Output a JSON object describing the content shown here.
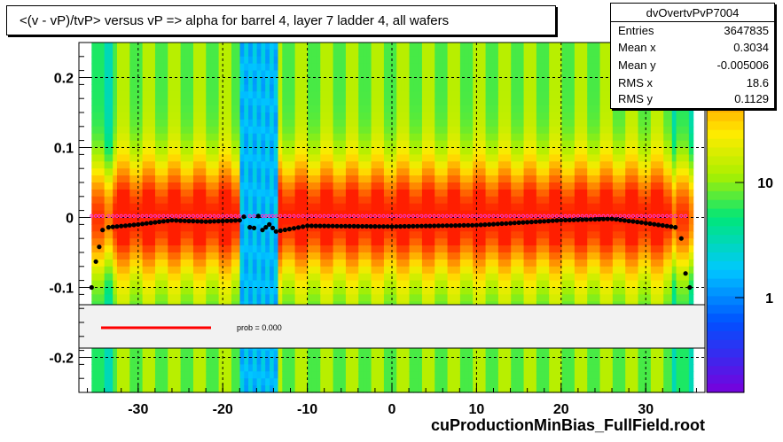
{
  "title": "<(v - vP)/tvP> versus   vP => alpha for barrel 4, layer 7 ladder 4, all wafers",
  "stats": {
    "name": "dvOvertvPvP7004",
    "rows": [
      {
        "key": "Entries",
        "value": "3647835"
      },
      {
        "key": "Mean x",
        "value": "0.3034"
      },
      {
        "key": "Mean y",
        "value": "-0.005006"
      },
      {
        "key": "RMS x",
        "value": "18.6"
      },
      {
        "key": "RMS y",
        "value": "0.1129"
      }
    ]
  },
  "legend": {
    "label": "prob = 0.000",
    "line_color": "#ff0000"
  },
  "footer": "cuProductionMinBias_FullField.root",
  "palette_labels": [
    "10",
    "1"
  ],
  "chart_data": {
    "type": "heatmap",
    "title": "<(v - vP)/tvP> versus   vP => alpha for barrel 4, layer 7 ladder 4, all wafers",
    "xlabel": "",
    "ylabel": "",
    "xlim": [
      -37,
      37
    ],
    "ylim": [
      -0.25,
      0.25
    ],
    "x_ticks": [
      -30,
      -20,
      -10,
      0,
      10,
      20,
      30
    ],
    "x_tick_labels": [
      "-30",
      "-20",
      "-10",
      "0",
      "10",
      "20",
      "30"
    ],
    "y_ticks": [
      -0.2,
      -0.1,
      0,
      0.1,
      0.2
    ],
    "y_tick_labels": [
      "-0.2",
      "-0.1",
      "0",
      "0.1",
      "0.2"
    ],
    "grid": true,
    "z_scale": "log",
    "z_ticks": [
      "1",
      "10"
    ],
    "profile_black": [
      {
        "x": -35.5,
        "y": -0.1
      },
      {
        "x": -35.0,
        "y": -0.063
      },
      {
        "x": -34.6,
        "y": -0.042
      },
      {
        "x": -34.2,
        "y": -0.018
      },
      {
        "x": -33.5,
        "y": -0.014
      },
      {
        "x": -30,
        "y": -0.01
      },
      {
        "x": -26,
        "y": -0.004
      },
      {
        "x": -22,
        "y": -0.006
      },
      {
        "x": -18,
        "y": -0.004
      },
      {
        "x": -17.5,
        "y": 0.001
      },
      {
        "x": -16.8,
        "y": -0.014
      },
      {
        "x": -16.3,
        "y": -0.015
      },
      {
        "x": -15.8,
        "y": 0.002
      },
      {
        "x": -15.3,
        "y": -0.018
      },
      {
        "x": -14.5,
        "y": -0.01
      },
      {
        "x": -13.7,
        "y": -0.02
      },
      {
        "x": -10,
        "y": -0.012
      },
      {
        "x": 0,
        "y": -0.013
      },
      {
        "x": 10,
        "y": -0.011
      },
      {
        "x": 20,
        "y": -0.004
      },
      {
        "x": 26,
        "y": -0.002
      },
      {
        "x": 30,
        "y": -0.008
      },
      {
        "x": 33.5,
        "y": -0.014
      },
      {
        "x": 34.2,
        "y": -0.03
      },
      {
        "x": 34.7,
        "y": -0.08
      },
      {
        "x": 35.2,
        "y": -0.1
      }
    ],
    "profile_magenta_y": 0.0,
    "stats_text": "prob = 0.000"
  }
}
